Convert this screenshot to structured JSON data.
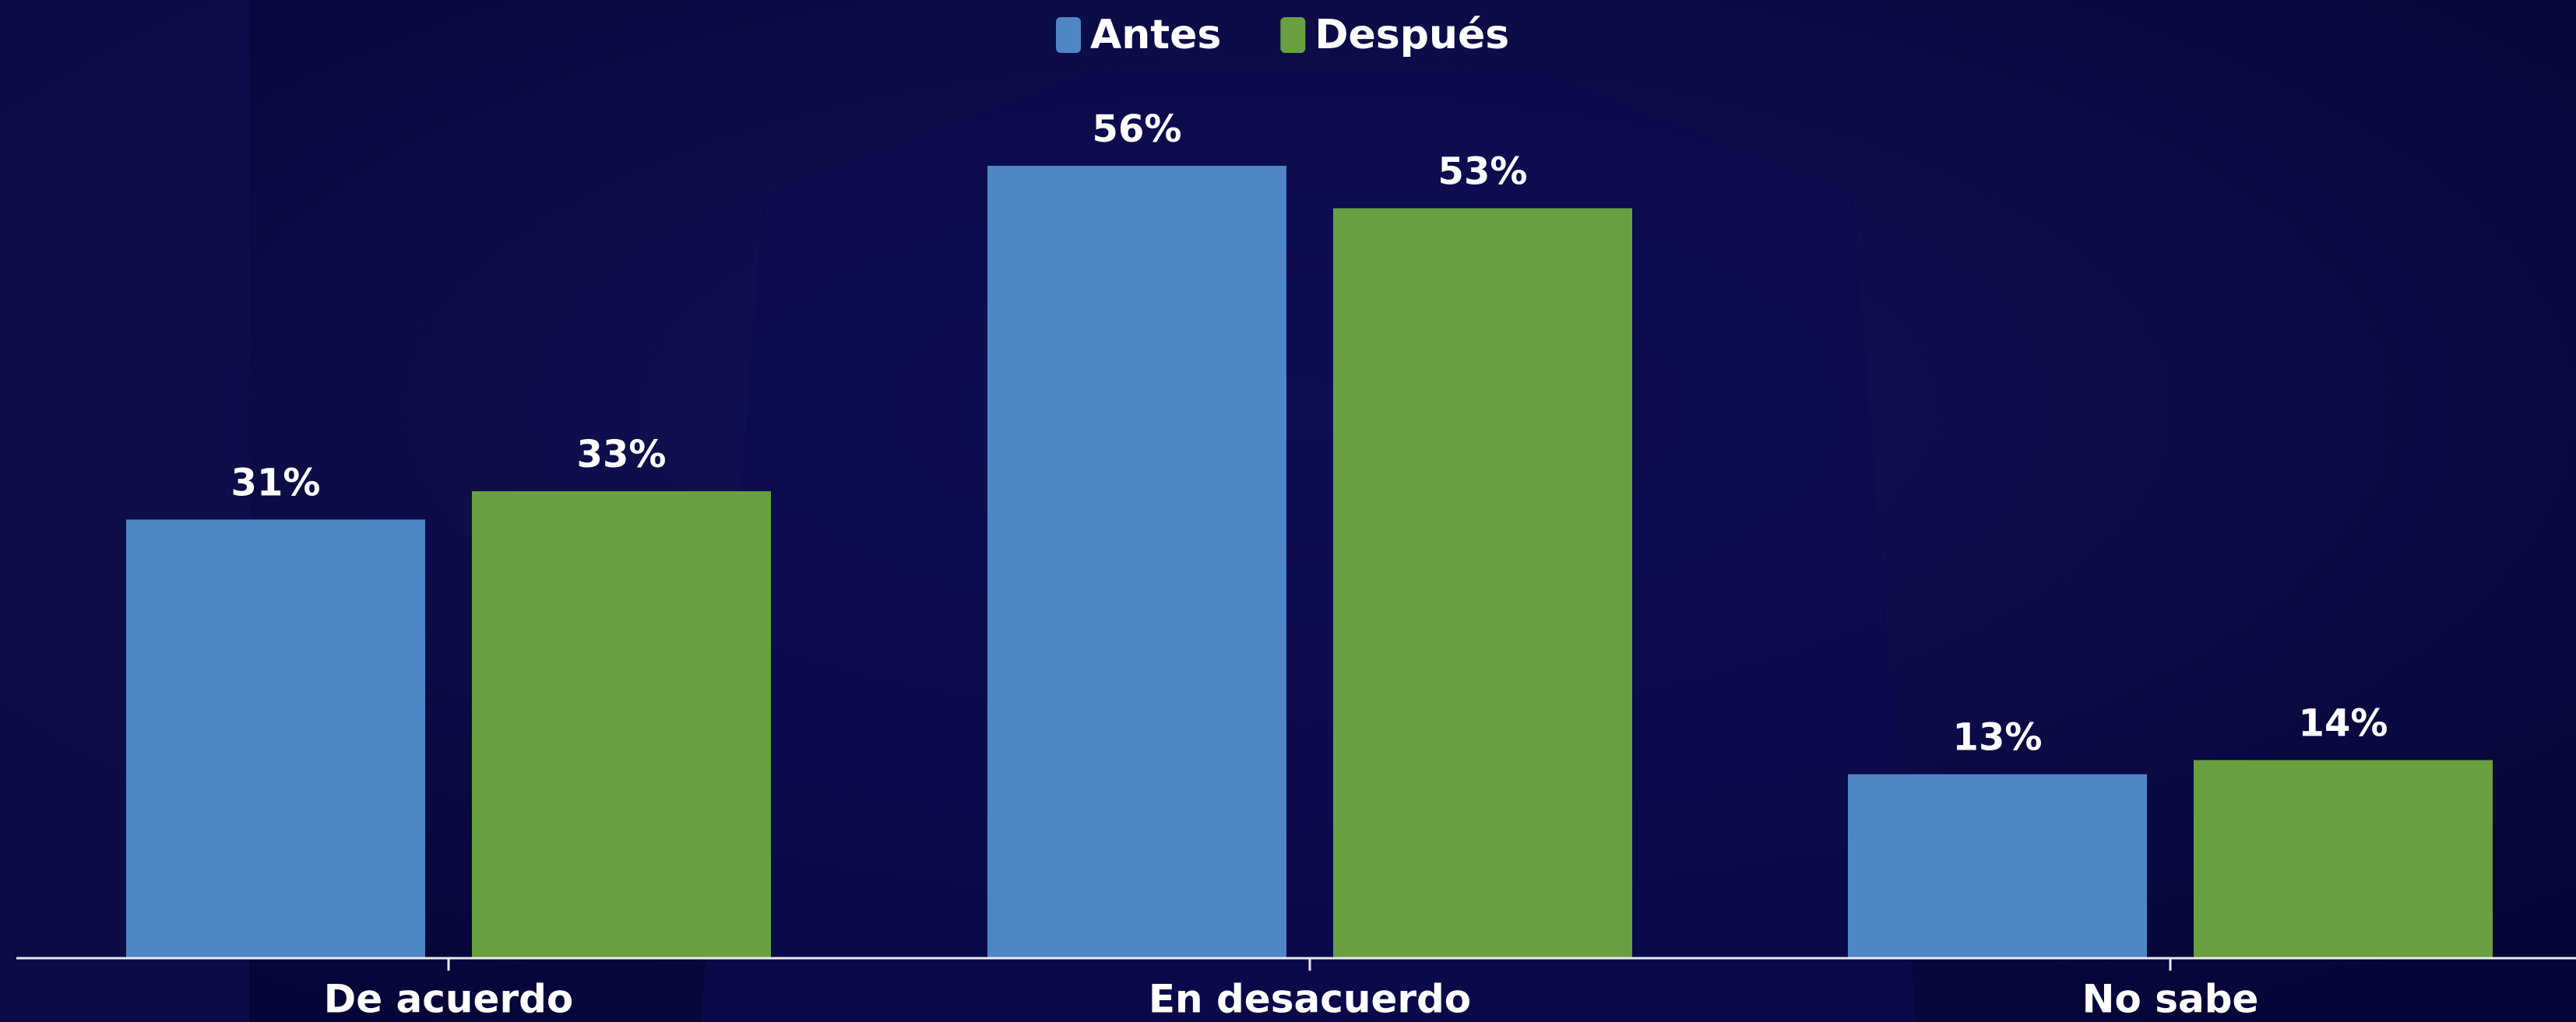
{
  "chart_data": {
    "type": "bar",
    "categories": [
      "De acuerdo",
      "En desacuerdo",
      "No sabe"
    ],
    "series": [
      {
        "name": "Antes",
        "color": "#4f86c6",
        "values": [
          31,
          56,
          13
        ],
        "value_labels": [
          "31%",
          "56%",
          "13%"
        ]
      },
      {
        "name": "Después",
        "color": "#68a03f",
        "values": [
          33,
          53,
          14
        ],
        "value_labels": [
          "33%",
          "53%",
          "14%"
        ]
      }
    ],
    "legend": "top"
  }
}
